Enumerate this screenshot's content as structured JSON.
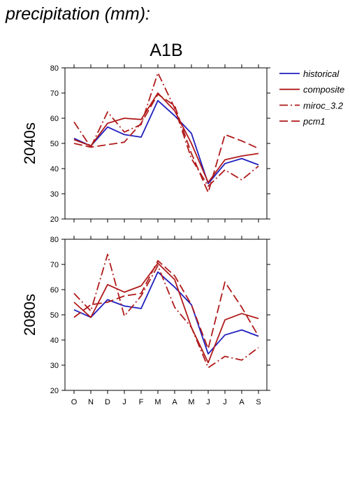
{
  "page": {
    "title": "precipitation (mm):"
  },
  "chart_data": {
    "type": "line",
    "scenario": "A1B",
    "categories": [
      "O",
      "N",
      "D",
      "J",
      "F",
      "M",
      "A",
      "M",
      "J",
      "J",
      "A",
      "S"
    ],
    "ylim": [
      20,
      80
    ],
    "yticks": [
      "20",
      "30",
      "40",
      "50",
      "60",
      "70",
      "80"
    ],
    "legend_position": "right",
    "colors": {
      "historical": "#1f1fbf",
      "projection": "#b01a1a"
    },
    "legend": [
      {
        "name": "historical",
        "color": "#1f1fbf",
        "dash": "solid"
      },
      {
        "name": "composite",
        "color": "#b01a1a",
        "dash": "solid"
      },
      {
        "name": "miroc_3.2",
        "color": "#b01a1a",
        "dash": "dashdot"
      },
      {
        "name": "pcm1",
        "color": "#b01a1a",
        "dash": "dash"
      }
    ],
    "panels": [
      {
        "label": "2040s",
        "series": [
          {
            "name": "historical",
            "values": [
              52,
              49,
              56.5,
              53.5,
              52.5,
              67,
              61,
              54,
              34,
              42,
              44,
              41.5
            ]
          },
          {
            "name": "composite",
            "values": [
              51.5,
              49,
              58,
              60,
              59.5,
              70,
              63,
              50,
              34.5,
              43.5,
              45,
              46
            ]
          },
          {
            "name": "miroc_3.2",
            "values": [
              58.5,
              48.5,
              62.5,
              54.5,
              57.5,
              78,
              64,
              44,
              33,
              39.5,
              35.5,
              41
            ]
          },
          {
            "name": "pcm1",
            "values": [
              50,
              48.5,
              49.5,
              50.5,
              58,
              69.5,
              65,
              46,
              30.5,
              53.5,
              51,
              48
            ]
          }
        ]
      },
      {
        "label": "2080s",
        "series": [
          {
            "name": "historical",
            "values": [
              52,
              49,
              56,
              53.5,
              52.5,
              67,
              61,
              54,
              34.5,
              42,
              44,
              41.5
            ]
          },
          {
            "name": "composite",
            "values": [
              55,
              49,
              62,
              59,
              61.5,
              70.5,
              64,
              45,
              31,
              48,
              50.5,
              48.5
            ]
          },
          {
            "name": "miroc_3.2",
            "values": [
              58.5,
              51.5,
              74,
              49.5,
              57.5,
              69.5,
              53,
              45,
              29,
              33.5,
              32,
              37
            ]
          },
          {
            "name": "pcm1",
            "values": [
              49,
              54,
              55,
              57.5,
              58.5,
              71.5,
              65.5,
              54,
              36.5,
              63,
              53,
              41.5
            ]
          }
        ]
      }
    ]
  }
}
